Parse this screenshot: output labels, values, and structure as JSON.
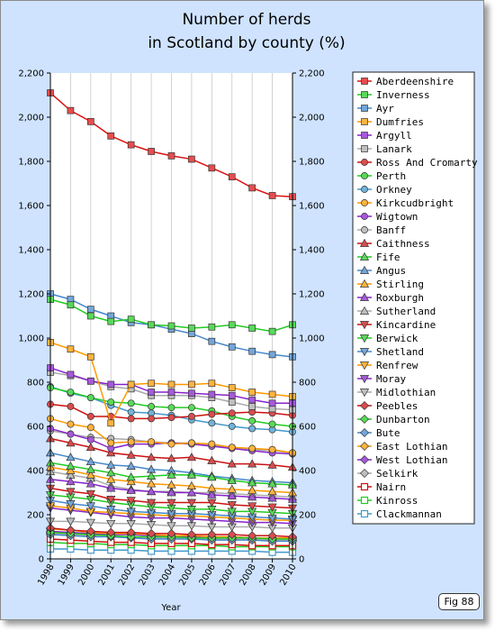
{
  "chart_data": {
    "type": "line",
    "title_line1": "Number of herds",
    "title_line2": "in Scotland by county (%)",
    "xlabel": "Year",
    "ylabel": "",
    "x": [
      "1998",
      "1999",
      "2000",
      "2001",
      "2002",
      "2003",
      "2004",
      "2005",
      "2006",
      "2007",
      "2008",
      "2009",
      "2010"
    ],
    "ylim": [
      0,
      2200
    ],
    "yticks": [
      "0",
      "200",
      "400",
      "600",
      "800",
      "1,000",
      "1,200",
      "1,400",
      "1,600",
      "1,800",
      "2,000",
      "2,200"
    ],
    "grid": "vertical",
    "legend_position": "right",
    "series": [
      {
        "name": "Aberdeenshire",
        "color": "#dd1111",
        "marker": "square",
        "values": [
          2110,
          2030,
          1980,
          1915,
          1875,
          1845,
          1825,
          1810,
          1770,
          1730,
          1680,
          1645,
          1640
        ]
      },
      {
        "name": "Inverness",
        "color": "#22cc22",
        "marker": "square",
        "values": [
          1175,
          1150,
          1100,
          1075,
          1085,
          1060,
          1055,
          1045,
          1050,
          1060,
          1045,
          1030,
          1060
        ]
      },
      {
        "name": "Ayr",
        "color": "#4488cc",
        "marker": "square",
        "values": [
          1200,
          1175,
          1130,
          1100,
          1070,
          1060,
          1040,
          1020,
          985,
          960,
          940,
          925,
          915
        ]
      },
      {
        "name": "Dumfries",
        "color": "#ff9900",
        "marker": "square",
        "values": [
          980,
          950,
          915,
          615,
          790,
          795,
          790,
          790,
          795,
          775,
          755,
          745,
          735
        ]
      },
      {
        "name": "Argyll",
        "color": "#8822cc",
        "marker": "square",
        "values": [
          865,
          835,
          805,
          790,
          790,
          755,
          755,
          750,
          745,
          740,
          720,
          705,
          705
        ]
      },
      {
        "name": "Lanark",
        "color": "#aaaaaa",
        "marker": "square",
        "values": [
          845,
          830,
          805,
          780,
          770,
          740,
          740,
          740,
          730,
          710,
          690,
          680,
          675
        ]
      },
      {
        "name": "Ross And Cromarty",
        "color": "#cc1111",
        "marker": "circle",
        "values": [
          700,
          690,
          645,
          645,
          635,
          635,
          640,
          645,
          655,
          660,
          665,
          660,
          650
        ]
      },
      {
        "name": "Perth",
        "color": "#22cc22",
        "marker": "circle",
        "values": [
          775,
          755,
          730,
          710,
          705,
          690,
          685,
          685,
          670,
          645,
          625,
          610,
          600
        ]
      },
      {
        "name": "Orkney",
        "color": "#4499cc",
        "marker": "circle",
        "values": [
          780,
          750,
          730,
          695,
          665,
          660,
          650,
          630,
          615,
          600,
          590,
          585,
          575
        ]
      },
      {
        "name": "Kirkcudbright",
        "color": "#ff9900",
        "marker": "circle",
        "values": [
          635,
          610,
          595,
          525,
          530,
          530,
          520,
          525,
          520,
          505,
          500,
          495,
          480
        ]
      },
      {
        "name": "Wigtown",
        "color": "#8822cc",
        "marker": "circle",
        "values": [
          590,
          565,
          540,
          500,
          520,
          520,
          525,
          520,
          510,
          500,
          490,
          480,
          475
        ]
      },
      {
        "name": "Banff",
        "color": "#aaaaaa",
        "marker": "circle",
        "values": [
          580,
          565,
          550,
          545,
          540,
          530,
          525,
          525,
          515,
          505,
          495,
          490,
          480
        ]
      },
      {
        "name": "Caithness",
        "color": "#cc1111",
        "marker": "triangle",
        "values": [
          545,
          525,
          505,
          480,
          470,
          460,
          455,
          460,
          445,
          430,
          430,
          425,
          415
        ]
      },
      {
        "name": "Fife",
        "color": "#22cc22",
        "marker": "triangle",
        "values": [
          435,
          420,
          405,
          390,
          370,
          375,
          380,
          380,
          370,
          355,
          345,
          340,
          335
        ]
      },
      {
        "name": "Angus",
        "color": "#4488cc",
        "marker": "triangle",
        "values": [
          480,
          460,
          440,
          425,
          420,
          405,
          400,
          390,
          375,
          365,
          355,
          350,
          345
        ]
      },
      {
        "name": "Stirling",
        "color": "#ff9900",
        "marker": "triangle",
        "values": [
          415,
          400,
          380,
          360,
          350,
          340,
          335,
          330,
          320,
          315,
          310,
          305,
          300
        ]
      },
      {
        "name": "Roxburgh",
        "color": "#8822cc",
        "marker": "triangle",
        "values": [
          360,
          350,
          340,
          320,
          310,
          305,
          300,
          300,
          290,
          285,
          280,
          275,
          270
        ]
      },
      {
        "name": "Sutherland",
        "color": "#aaaaaa",
        "marker": "triangle",
        "values": [
          395,
          380,
          365,
          330,
          315,
          305,
          305,
          300,
          300,
          295,
          290,
          285,
          280
        ]
      },
      {
        "name": "Kincardine",
        "color": "#cc1111",
        "marker": "tridown",
        "values": [
          320,
          305,
          295,
          270,
          265,
          255,
          255,
          255,
          255,
          245,
          240,
          235,
          230
        ]
      },
      {
        "name": "Berwick",
        "color": "#22cc22",
        "marker": "tridown",
        "values": [
          290,
          280,
          270,
          255,
          245,
          235,
          230,
          225,
          225,
          215,
          215,
          210,
          205
        ]
      },
      {
        "name": "Shetland",
        "color": "#4488cc",
        "marker": "tridown",
        "values": [
          265,
          250,
          240,
          225,
          215,
          210,
          205,
          205,
          200,
          195,
          190,
          185,
          180
        ]
      },
      {
        "name": "Renfrew",
        "color": "#ff9900",
        "marker": "tridown",
        "values": [
          240,
          230,
          215,
          210,
          205,
          200,
          195,
          195,
          190,
          185,
          180,
          175,
          175
        ]
      },
      {
        "name": "Moray",
        "color": "#8822cc",
        "marker": "tridown",
        "values": [
          230,
          220,
          210,
          200,
          190,
          185,
          185,
          180,
          175,
          170,
          165,
          165,
          160
        ]
      },
      {
        "name": "Midlothian",
        "color": "#aaaaaa",
        "marker": "tridown",
        "values": [
          170,
          170,
          165,
          160,
          160,
          155,
          150,
          150,
          145,
          145,
          145,
          140,
          140
        ]
      },
      {
        "name": "Peebles",
        "color": "#cc1111",
        "marker": "diamond",
        "values": [
          140,
          130,
          125,
          120,
          120,
          115,
          115,
          110,
          110,
          110,
          105,
          105,
          100
        ]
      },
      {
        "name": "Dunbarton",
        "color": "#22cc22",
        "marker": "diamond",
        "values": [
          120,
          115,
          110,
          105,
          100,
          100,
          100,
          95,
          95,
          95,
          95,
          90,
          90
        ]
      },
      {
        "name": "Bute",
        "color": "#4488cc",
        "marker": "diamond",
        "values": [
          110,
          105,
          100,
          100,
          95,
          90,
          90,
          90,
          85,
          85,
          85,
          80,
          80
        ]
      },
      {
        "name": "East Lothian",
        "color": "#ff9900",
        "marker": "diamond",
        "values": [
          135,
          130,
          120,
          115,
          115,
          110,
          105,
          105,
          100,
          100,
          95,
          95,
          95
        ]
      },
      {
        "name": "West Lothian",
        "color": "#8822cc",
        "marker": "diamond",
        "values": [
          125,
          120,
          115,
          110,
          110,
          105,
          105,
          100,
          100,
          100,
          95,
          95,
          95
        ]
      },
      {
        "name": "Selkirk",
        "color": "#aaaaaa",
        "marker": "diamond",
        "values": [
          115,
          110,
          105,
          100,
          100,
          95,
          95,
          95,
          90,
          90,
          90,
          85,
          85
        ]
      },
      {
        "name": "Nairn",
        "color": "#cc1111",
        "marker": "hsquare",
        "values": [
          90,
          85,
          80,
          75,
          75,
          70,
          70,
          70,
          65,
          65,
          60,
          60,
          60
        ]
      },
      {
        "name": "Kinross",
        "color": "#22cc22",
        "marker": "hsquare",
        "values": [
          75,
          70,
          70,
          65,
          65,
          60,
          60,
          60,
          60,
          55,
          55,
          55,
          55
        ]
      },
      {
        "name": "Clackmannan",
        "color": "#4499cc",
        "marker": "hsquare",
        "values": [
          45,
          45,
          40,
          40,
          40,
          35,
          35,
          35,
          35,
          35,
          35,
          30,
          30
        ]
      }
    ]
  },
  "figure_label": "Fig 88"
}
